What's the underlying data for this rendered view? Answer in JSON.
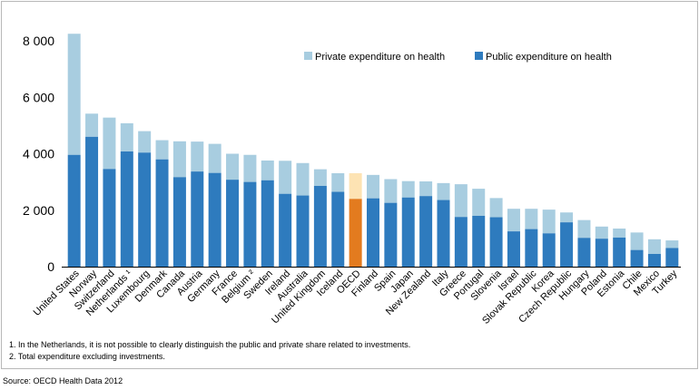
{
  "chart_data": {
    "type": "bar",
    "stacked": true,
    "categories": [
      "United States",
      "Norway",
      "Switzerland",
      "Netherlands ¹",
      "Luxembourg",
      "Denmark",
      "Canada",
      "Austria",
      "Germany",
      "France",
      "Belgium ²",
      "Sweden",
      "Ireland",
      "Australia",
      "United Kingdom",
      "Iceland",
      "OECD",
      "Finland",
      "Spain",
      "Japan",
      "New Zealand",
      "Italy",
      "Greece",
      "Portugal",
      "Slovenia",
      "Israel",
      "Slovak Republic",
      "Korea",
      "Czech Republic",
      "Hungary",
      "Poland",
      "Estonia",
      "Chile",
      "Mexico",
      "Turkey"
    ],
    "series": [
      {
        "name": "Public expenditure on health",
        "values": [
          3960,
          4600,
          3460,
          4080,
          4040,
          3800,
          3170,
          3370,
          3320,
          3080,
          3000,
          3060,
          2580,
          2520,
          2860,
          2650,
          2400,
          2420,
          2260,
          2450,
          2500,
          2360,
          1760,
          1800,
          1750,
          1250,
          1330,
          1180,
          1570,
          1020,
          990,
          1030,
          590,
          450,
          660
        ],
        "colors": {
          "default": "#2e7bbe",
          "highlight": "#e37b1f"
        }
      },
      {
        "name": "Private expenditure on health",
        "values": [
          4290,
          820,
          1820,
          1000,
          760,
          680,
          1270,
          1060,
          1030,
          920,
          960,
          700,
          1170,
          1150,
          590,
          660,
          910,
          830,
          840,
          580,
          520,
          600,
          1160,
          960,
          680,
          800,
          720,
          840,
          350,
          630,
          430,
          320,
          620,
          520,
          270
        ],
        "colors": {
          "default": "#a8cde0",
          "highlight": "#fde3b3"
        }
      }
    ],
    "highlight_category": "OECD",
    "ylim": [
      0,
      8500
    ],
    "yticks": [
      0,
      2000,
      4000,
      6000,
      8000
    ],
    "ytick_labels": [
      "0",
      "2 000",
      "4 000",
      "6 000",
      "8 000"
    ],
    "legend_position": "top-right",
    "legend": [
      "Private expenditure on health",
      "Public expenditure on health"
    ],
    "grid": false
  },
  "notes": [
    "1. In the Netherlands, it is not possible to clearly distinguish the public and private share related to investments.",
    "2. Total expenditure excluding investments."
  ],
  "source": "Source: OECD Health Data 2012"
}
